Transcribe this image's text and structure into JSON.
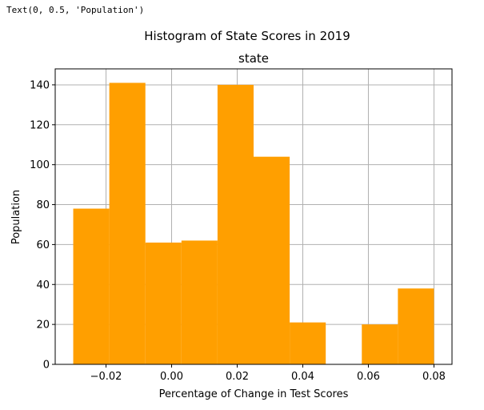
{
  "cell_output": "Text(0, 0.5, 'Population')",
  "chart_data": {
    "type": "bar",
    "suptitle": "Histogram of State Scores in 2019",
    "title": "state",
    "xlabel": "Percentage of Change in Test Scores",
    "ylabel": "Population",
    "bins": [
      {
        "start": -0.03,
        "end": -0.019,
        "count": 78
      },
      {
        "start": -0.019,
        "end": -0.008,
        "count": 141
      },
      {
        "start": -0.008,
        "end": 0.003,
        "count": 61
      },
      {
        "start": 0.003,
        "end": 0.014,
        "count": 62
      },
      {
        "start": 0.014,
        "end": 0.025,
        "count": 140
      },
      {
        "start": 0.025,
        "end": 0.036,
        "count": 104
      },
      {
        "start": 0.036,
        "end": 0.047,
        "count": 21
      },
      {
        "start": 0.047,
        "end": 0.058,
        "count": 0
      },
      {
        "start": 0.058,
        "end": 0.069,
        "count": 20
      },
      {
        "start": 0.069,
        "end": 0.08,
        "count": 38
      }
    ],
    "xticks": [
      -0.02,
      0.0,
      0.02,
      0.04,
      0.06,
      0.08
    ],
    "xtick_labels": [
      "−0.02",
      "0.00",
      "0.02",
      "0.04",
      "0.06",
      "0.08"
    ],
    "yticks": [
      0,
      20,
      40,
      60,
      80,
      100,
      120,
      140
    ],
    "xlim": [
      -0.0355,
      0.0855
    ],
    "ylim": [
      0,
      148
    ],
    "grid": true,
    "bar_color": "#ff9f00",
    "grid_color": "#b0b0b0"
  }
}
